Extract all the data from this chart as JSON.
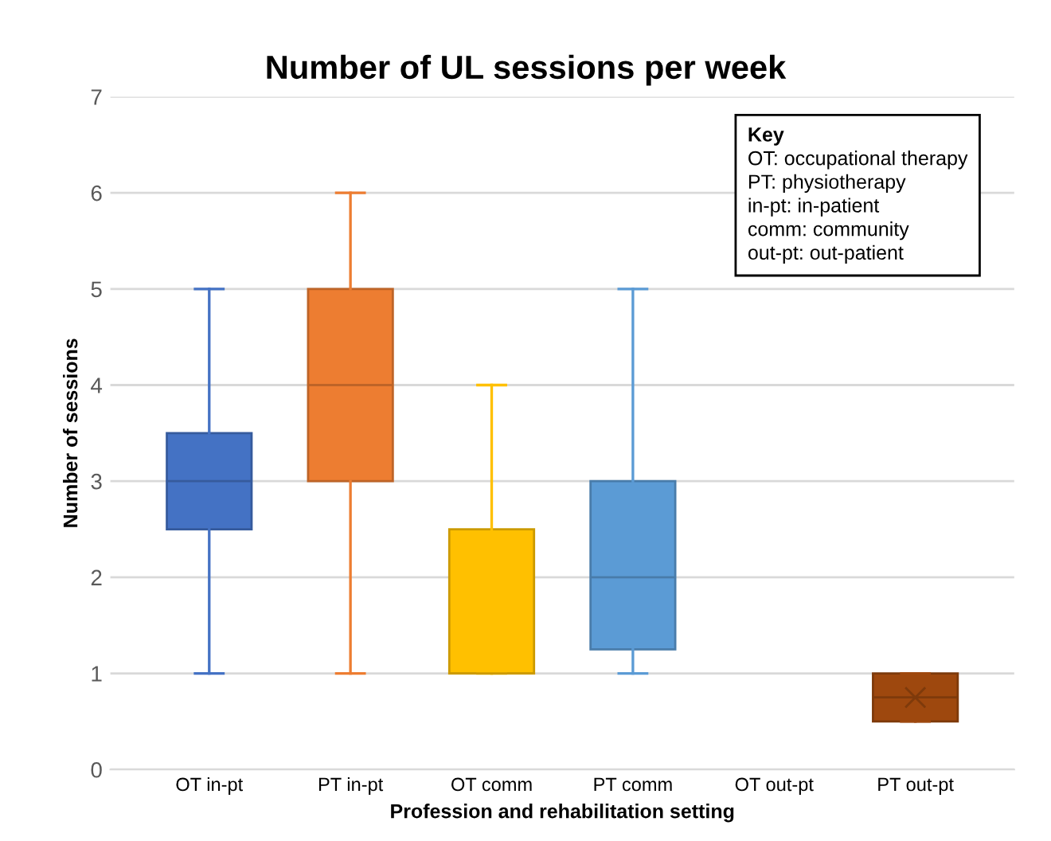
{
  "chart_data": {
    "type": "box",
    "title": "Number of UL sessions per week",
    "xlabel": "Profession and rehabilitation setting",
    "ylabel": "Number of sessions",
    "categories": [
      "OT in-pt",
      "PT in-pt",
      "OT comm",
      "PT comm",
      "OT out-pt",
      "PT out-pt"
    ],
    "colors": [
      "#4472c4",
      "#ed7d31",
      "#ffc000",
      "#5b9bd5",
      "#a5a5a5",
      "#9e480e"
    ],
    "boxes": [
      {
        "low": 1,
        "q1": 2.5,
        "median": 3,
        "q3": 3.5,
        "high": 5
      },
      {
        "low": 1,
        "q1": 3,
        "median": 4,
        "q3": 5,
        "high": 6
      },
      {
        "low": 1,
        "q1": 1,
        "median": 1,
        "q3": 2.5,
        "high": 4
      },
      {
        "low": 1,
        "q1": 1.25,
        "median": 2,
        "q3": 3,
        "high": 5
      },
      null,
      {
        "low": 0.5,
        "q1": 0.5,
        "median": 0.75,
        "q3": 1,
        "high": 1,
        "mean": 0.75
      }
    ],
    "ylim": [
      0,
      7
    ],
    "yticks": [
      0,
      1,
      2,
      3,
      4,
      5,
      6,
      7
    ],
    "grid": "y",
    "annotations": [
      "Key",
      "OT: occupational therapy",
      "PT: physiotherapy",
      "in-pt: in-patient",
      "comm: community",
      "out-pt: out-patient"
    ]
  }
}
